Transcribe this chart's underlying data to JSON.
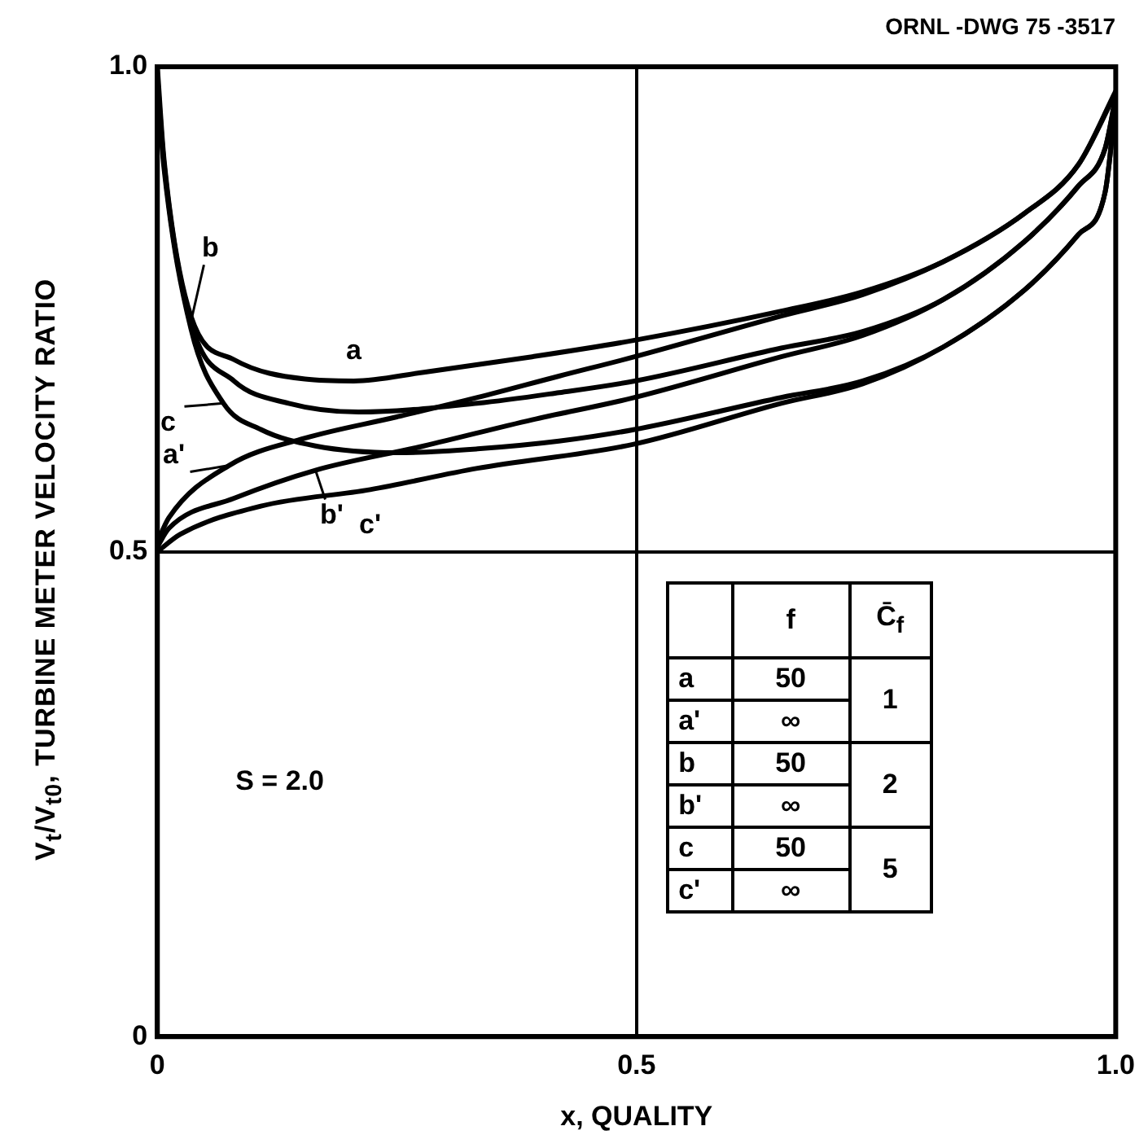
{
  "chart_data": {
    "type": "line",
    "xlabel": "x, QUALITY",
    "ylabel": "V$_{t}$/V$_{t0}$, TURBINE METER VELOCITY RATIO",
    "annotations": [
      "ORNL -DWG 75 -3517",
      "S = 2.0",
      "f",
      "C̄$_{f}$",
      "50",
      "∞",
      "50",
      "∞",
      "50",
      "∞",
      "1",
      "2",
      "5"
    ],
    "xlim": [
      0,
      1
    ],
    "ylim": [
      0,
      1
    ],
    "xticks": [
      0,
      0.5,
      {
        "value": 1,
        "label": "1.0"
      }
    ],
    "yticks": [
      0,
      0.5,
      {
        "value": 1,
        "label": "1.0"
      }
    ],
    "grid": true,
    "legend": "bottom",
    "marker": "none",
    "line_style": "solid",
    "series": [
      {
        "name": "a",
        "color": "#000000",
        "x": [
          0,
          0.007,
          0.035,
          0.08,
          0.154,
          0.205,
          0.278,
          0.391,
          0.498,
          0.651,
          0.736,
          0.82,
          0.905,
          0.961,
          1
        ],
        "values": [
          1,
          0.904,
          0.743,
          0.698,
          0.678,
          0.676,
          0.685,
          0.701,
          0.718,
          0.748,
          0.768,
          0.799,
          0.849,
          0.899,
          0.975
        ]
      },
      {
        "name": "a'",
        "color": "#000000",
        "x": [
          0,
          0.012,
          0.075,
          0.154,
          0.25,
          0.334,
          0.419,
          0.498,
          0.651,
          0.736,
          0.82,
          0.905,
          0.961,
          1
        ],
        "values": [
          0.51,
          0.535,
          0.589,
          0.617,
          0.639,
          0.659,
          0.681,
          0.701,
          0.743,
          0.765,
          0.799,
          0.849,
          0.899,
          0.973
        ]
      },
      {
        "name": "b",
        "color": "#000000",
        "x": [
          0,
          0.007,
          0.035,
          0.08,
          0.137,
          0.21,
          0.334,
          0.419,
          0.498,
          0.651,
          0.736,
          0.82,
          0.905,
          0.961,
          0.989,
          1
        ],
        "values": [
          0.99,
          0.9,
          0.737,
          0.676,
          0.653,
          0.644,
          0.653,
          0.664,
          0.676,
          0.71,
          0.727,
          0.76,
          0.82,
          0.877,
          0.916,
          0.97
        ]
      },
      {
        "name": "b'",
        "color": "#000000",
        "x": [
          0,
          0.012,
          0.08,
          0.165,
          0.278,
          0.391,
          0.498,
          0.651,
          0.736,
          0.82,
          0.905,
          0.961,
          0.989,
          1
        ],
        "values": [
          0.505,
          0.524,
          0.555,
          0.584,
          0.609,
          0.636,
          0.659,
          0.701,
          0.723,
          0.76,
          0.82,
          0.877,
          0.916,
          0.968
        ]
      },
      {
        "name": "c",
        "color": "#000000",
        "x": [
          0,
          0.007,
          0.035,
          0.069,
          0.108,
          0.165,
          0.25,
          0.334,
          0.419,
          0.498,
          0.651,
          0.736,
          0.82,
          0.905,
          0.961,
          0.989,
          1
        ],
        "values": [
          0.98,
          0.895,
          0.73,
          0.653,
          0.626,
          0.609,
          0.602,
          0.606,
          0.614,
          0.626,
          0.659,
          0.676,
          0.711,
          0.77,
          0.827,
          0.871,
          0.965
        ]
      },
      {
        "name": "c'",
        "color": "#000000",
        "x": [
          0,
          0.024,
          0.108,
          0.222,
          0.334,
          0.498,
          0.651,
          0.736,
          0.82,
          0.905,
          0.961,
          0.989,
          1
        ],
        "values": [
          0.5,
          0.518,
          0.547,
          0.564,
          0.586,
          0.611,
          0.653,
          0.673,
          0.711,
          0.77,
          0.827,
          0.871,
          0.963
        ]
      }
    ]
  }
}
